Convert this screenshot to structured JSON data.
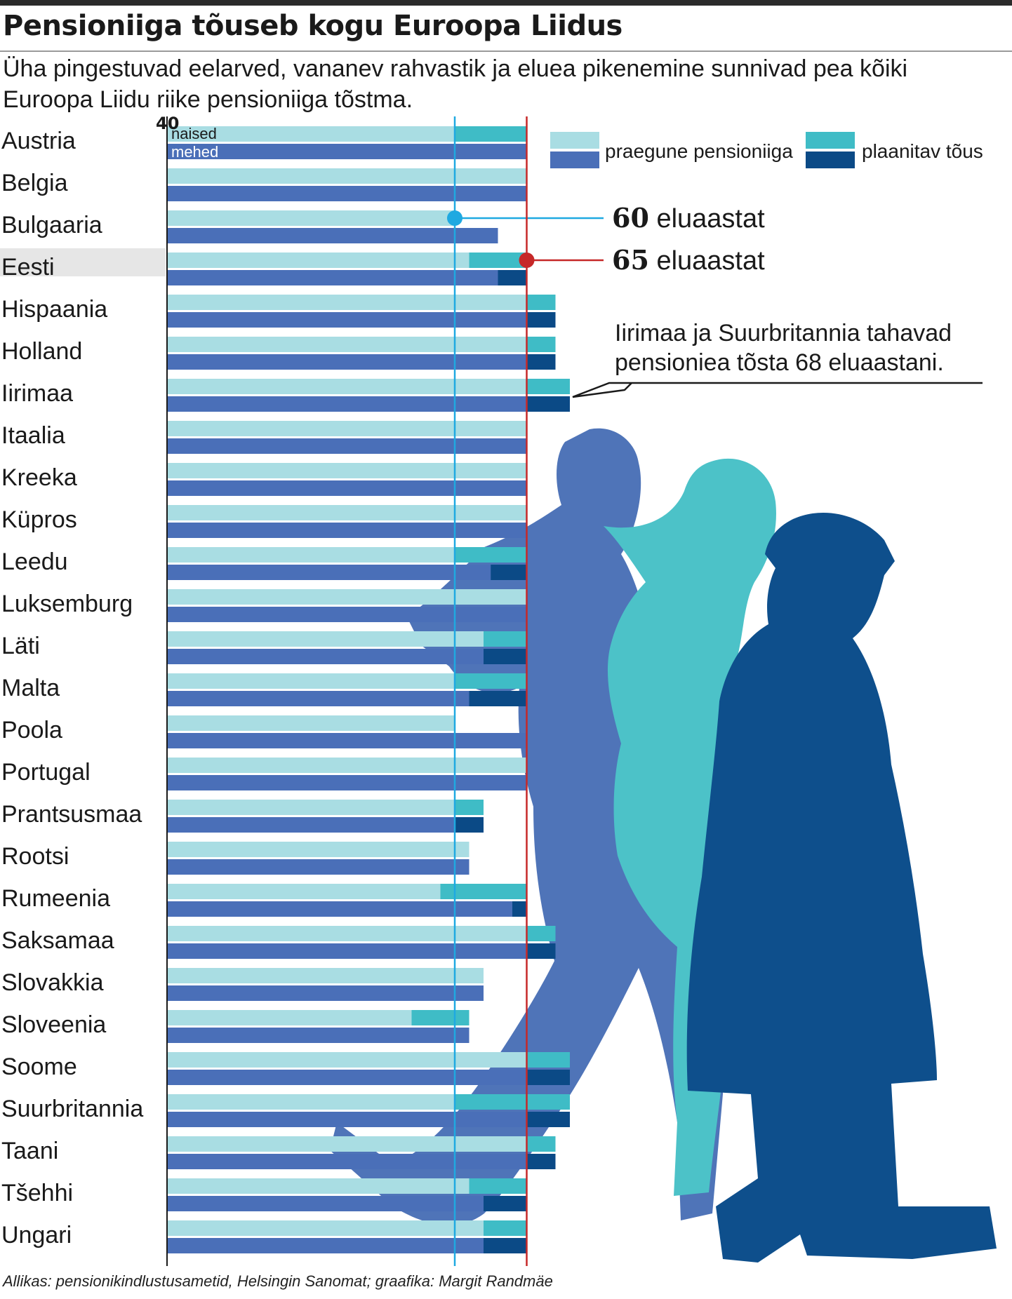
{
  "title": "Pensioniiga tõuseb kogu Euroopa Liidus",
  "subtitle": "Üha pingestuvad eelarved, vananev rahvastik ja eluea pikenemine sunnivad pea kõiki Euroopa Liidu riike pensioniiga tõstma.",
  "source": "Allikas: pensionikindlustusametid, Helsingin Sanomat; graafika: Margit Randmäe",
  "colors": {
    "women_current": "#a9dde3",
    "women_planned": "#3fbcc6",
    "men_current": "#4a6fb8",
    "men_planned": "#0b4a86",
    "line_60": "#1fa9e1",
    "line_65": "#c62828",
    "highlight": "#e6e6e6",
    "silhouette_man": "#4f74b8",
    "silhouette_woman": "#4cc2c8",
    "silhouette_old_man": "#0e4f8c"
  },
  "chart_data": {
    "type": "bar",
    "orientation": "horizontal",
    "x_axis": {
      "min": 40,
      "tick_label": "40"
    },
    "series_labels": {
      "women": "naised",
      "men": "mehed"
    },
    "legend": {
      "current": "praegune pensioniiga",
      "planned": "plaanitav tõus",
      "position": "top-right"
    },
    "reference_lines": [
      {
        "value": 60,
        "num": "60",
        "unit": "eluaastat"
      },
      {
        "value": 65,
        "num": "65",
        "unit": "eluaastat"
      }
    ],
    "highlighted_country": "Eesti",
    "annotation": {
      "lines": [
        "Iirimaa ja Suurbritannia tahavad",
        "pensioniea tõsta 68 eluaastani."
      ],
      "points_to": "Iirimaa"
    },
    "countries": [
      {
        "name": "Austria",
        "women_current": 60,
        "women_planned": 65,
        "men_current": 65,
        "men_planned": 65
      },
      {
        "name": "Belgia",
        "women_current": 65,
        "women_planned": 65,
        "men_current": 65,
        "men_planned": 65
      },
      {
        "name": "Bulgaaria",
        "women_current": 60,
        "women_planned": 60,
        "men_current": 63,
        "men_planned": 63
      },
      {
        "name": "Eesti",
        "women_current": 61,
        "women_planned": 65,
        "men_current": 63,
        "men_planned": 65
      },
      {
        "name": "Hispaania",
        "women_current": 65,
        "women_planned": 67,
        "men_current": 65,
        "men_planned": 67
      },
      {
        "name": "Holland",
        "women_current": 65,
        "women_planned": 67,
        "men_current": 65,
        "men_planned": 67
      },
      {
        "name": "Iirimaa",
        "women_current": 65,
        "women_planned": 68,
        "men_current": 65,
        "men_planned": 68
      },
      {
        "name": "Itaalia",
        "women_current": 65,
        "women_planned": 65,
        "men_current": 65,
        "men_planned": 65
      },
      {
        "name": "Kreeka",
        "women_current": 65,
        "women_planned": 65,
        "men_current": 65,
        "men_planned": 65
      },
      {
        "name": "Küpros",
        "women_current": 65,
        "women_planned": 65,
        "men_current": 65,
        "men_planned": 65
      },
      {
        "name": "Leedu",
        "women_current": 60,
        "women_planned": 65,
        "men_current": 62.5,
        "men_planned": 65
      },
      {
        "name": "Luksemburg",
        "women_current": 65,
        "women_planned": 65,
        "men_current": 65,
        "men_planned": 65
      },
      {
        "name": "Läti",
        "women_current": 62,
        "women_planned": 65,
        "men_current": 62,
        "men_planned": 65
      },
      {
        "name": "Malta",
        "women_current": 60,
        "women_planned": 65,
        "men_current": 61,
        "men_planned": 65
      },
      {
        "name": "Poola",
        "women_current": 60,
        "women_planned": 60,
        "men_current": 65,
        "men_planned": 65
      },
      {
        "name": "Portugal",
        "women_current": 65,
        "women_planned": 65,
        "men_current": 65,
        "men_planned": 65
      },
      {
        "name": "Prantsusmaa",
        "women_current": 60,
        "women_planned": 62,
        "men_current": 60,
        "men_planned": 62
      },
      {
        "name": "Rootsi",
        "women_current": 61,
        "women_planned": 61,
        "men_current": 61,
        "men_planned": 61
      },
      {
        "name": "Rumeenia",
        "women_current": 59,
        "women_planned": 65,
        "men_current": 64,
        "men_planned": 65
      },
      {
        "name": "Saksamaa",
        "women_current": 65,
        "women_planned": 67,
        "men_current": 65,
        "men_planned": 67
      },
      {
        "name": "Slovakkia",
        "women_current": 62,
        "women_planned": 62,
        "men_current": 62,
        "men_planned": 62
      },
      {
        "name": "Sloveenia",
        "women_current": 57,
        "women_planned": 61,
        "men_current": 61,
        "men_planned": 61
      },
      {
        "name": "Soome",
        "women_current": 65,
        "women_planned": 68,
        "men_current": 65,
        "men_planned": 68
      },
      {
        "name": "Suurbritannia",
        "women_current": 60,
        "women_planned": 68,
        "men_current": 65,
        "men_planned": 68
      },
      {
        "name": "Taani",
        "women_current": 65,
        "women_planned": 67,
        "men_current": 65,
        "men_planned": 67
      },
      {
        "name": "Tšehhi",
        "women_current": 61,
        "women_planned": 65,
        "men_current": 62,
        "men_planned": 65
      },
      {
        "name": "Ungari",
        "women_current": 62,
        "women_planned": 65,
        "men_current": 62,
        "men_planned": 65
      }
    ]
  }
}
